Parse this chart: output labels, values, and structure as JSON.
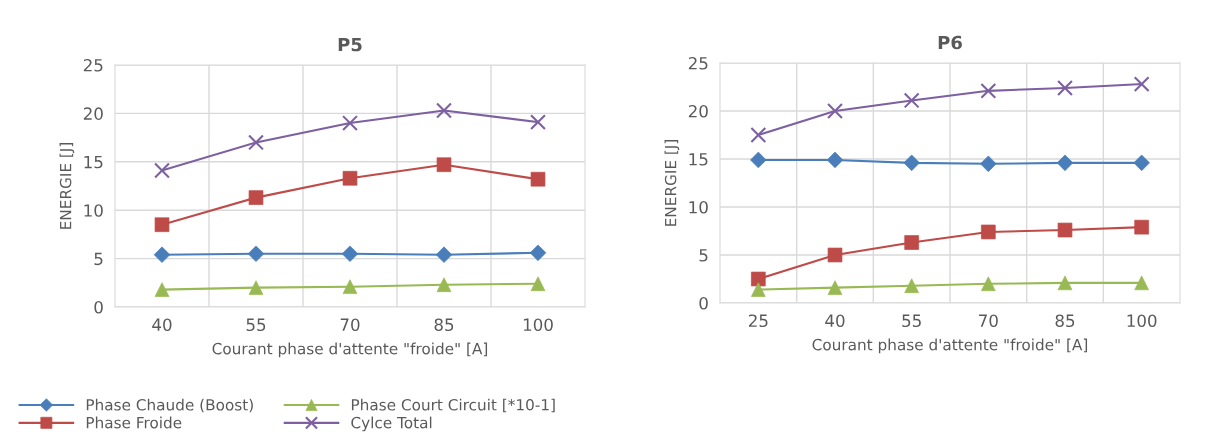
{
  "chart_data": [
    {
      "type": "line",
      "title": "P5",
      "xlabel": "Courant phase d'attente \"froide\" [A]",
      "ylabel": "ENERGIE [J]",
      "categories": [
        "40",
        "55",
        "70",
        "85",
        "100"
      ],
      "ylim": [
        0,
        25
      ],
      "yticks": [
        0,
        5,
        10,
        15,
        20,
        25
      ],
      "grid": true,
      "legend": "bottom",
      "series": [
        {
          "name": "Phase Chaude (Boost)",
          "color": "#4a7ebb",
          "marker": "diamond",
          "values": [
            5.4,
            5.5,
            5.5,
            5.4,
            5.6
          ]
        },
        {
          "name": "Phase Froide",
          "color": "#be4b48",
          "marker": "square",
          "values": [
            8.5,
            11.3,
            13.3,
            14.7,
            13.2
          ]
        },
        {
          "name": "Phase Court Circuit [*10-1]",
          "color": "#98b954",
          "marker": "triangle",
          "values": [
            1.8,
            2.0,
            2.1,
            2.3,
            2.4
          ]
        },
        {
          "name": "Cylce Total",
          "color": "#7d60a0",
          "marker": "cross",
          "values": [
            14.1,
            17.0,
            19.0,
            20.3,
            19.1
          ]
        }
      ]
    },
    {
      "type": "line",
      "title": "P6",
      "xlabel": "Courant phase d'attente \"froide\" [A]",
      "ylabel": "ENERGIE [J]",
      "categories": [
        "25",
        "40",
        "55",
        "70",
        "85",
        "100"
      ],
      "ylim": [
        0,
        25
      ],
      "yticks": [
        0,
        5,
        10,
        15,
        20,
        25
      ],
      "grid": true,
      "series": [
        {
          "color": "#4a7ebb",
          "marker": "diamond",
          "values": [
            14.9,
            14.9,
            14.6,
            14.5,
            14.6,
            14.6
          ]
        },
        {
          "color": "#be4b48",
          "marker": "square",
          "values": [
            2.5,
            5.0,
            6.3,
            7.4,
            7.6,
            7.9
          ]
        },
        {
          "color": "#98b954",
          "marker": "triangle",
          "values": [
            1.4,
            1.6,
            1.8,
            2.0,
            2.1,
            2.1
          ]
        },
        {
          "color": "#7d60a0",
          "marker": "cross",
          "values": [
            17.5,
            20.0,
            21.1,
            22.1,
            22.4,
            22.8
          ]
        }
      ]
    }
  ]
}
